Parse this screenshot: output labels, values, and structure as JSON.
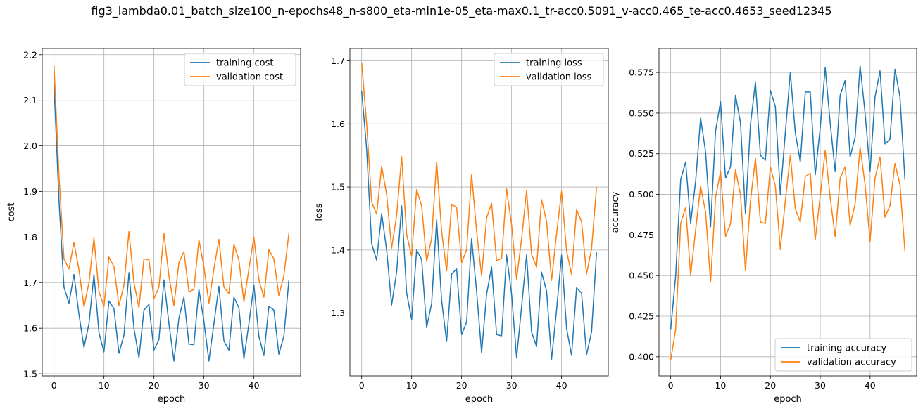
{
  "suptitle": "fig3_lambda0.01_batch_size100_n-epochs48_n-s800_eta-min1e-05_eta-max0.1_tr-acc0.5091_v-acc0.465_te-acc0.4653_seed12345",
  "colors": {
    "series1": "#1f77b4",
    "series2": "#ff7f0e",
    "grid": "#b0b0b0"
  },
  "chart_data": [
    {
      "type": "line",
      "title": "",
      "xlabel": "epoch",
      "ylabel": "cost",
      "xlim": [
        -2.35,
        49.35
      ],
      "ylim": [
        1.4955,
        2.2135
      ],
      "xticks": [
        0,
        10,
        20,
        30,
        40
      ],
      "yticks": [
        1.5,
        1.6,
        1.7,
        1.8,
        1.9,
        2.0,
        2.1,
        2.2
      ],
      "ytick_decimals": 1,
      "grid": true,
      "legend_position": "top-right",
      "x": [
        0,
        1,
        2,
        3,
        4,
        5,
        6,
        7,
        8,
        9,
        10,
        11,
        12,
        13,
        14,
        15,
        16,
        17,
        18,
        19,
        20,
        21,
        22,
        23,
        24,
        25,
        26,
        27,
        28,
        29,
        30,
        31,
        32,
        33,
        34,
        35,
        36,
        37,
        38,
        39,
        40,
        41,
        42,
        43,
        44,
        45,
        46,
        47
      ],
      "series": [
        {
          "name": "training cost",
          "values": [
            2.135,
            1.88,
            1.69,
            1.655,
            1.718,
            1.63,
            1.558,
            1.61,
            1.718,
            1.59,
            1.548,
            1.66,
            1.643,
            1.545,
            1.585,
            1.722,
            1.6,
            1.535,
            1.64,
            1.652,
            1.552,
            1.575,
            1.706,
            1.61,
            1.528,
            1.622,
            1.668,
            1.565,
            1.564,
            1.685,
            1.615,
            1.528,
            1.61,
            1.692,
            1.572,
            1.552,
            1.668,
            1.645,
            1.533,
            1.61,
            1.695,
            1.582,
            1.54,
            1.648,
            1.64,
            1.543,
            1.583,
            1.705
          ]
        },
        {
          "name": "validation cost",
          "values": [
            2.178,
            1.935,
            1.752,
            1.73,
            1.788,
            1.728,
            1.647,
            1.7,
            1.798,
            1.68,
            1.648,
            1.756,
            1.735,
            1.65,
            1.694,
            1.812,
            1.7,
            1.645,
            1.752,
            1.75,
            1.665,
            1.69,
            1.808,
            1.715,
            1.65,
            1.744,
            1.768,
            1.68,
            1.685,
            1.794,
            1.735,
            1.655,
            1.73,
            1.795,
            1.69,
            1.676,
            1.784,
            1.75,
            1.658,
            1.73,
            1.8,
            1.706,
            1.668,
            1.772,
            1.752,
            1.672,
            1.715,
            1.808
          ]
        }
      ]
    },
    {
      "type": "line",
      "title": "",
      "xlabel": "epoch",
      "ylabel": "loss",
      "xlim": [
        -2.35,
        49.35
      ],
      "ylim": [
        1.2005,
        1.7195
      ],
      "xticks": [
        0,
        10,
        20,
        30,
        40
      ],
      "yticks": [
        1.3,
        1.4,
        1.5,
        1.6,
        1.7
      ],
      "ytick_decimals": 1,
      "grid": true,
      "legend_position": "top-right",
      "x": [
        0,
        1,
        2,
        3,
        4,
        5,
        6,
        7,
        8,
        9,
        10,
        11,
        12,
        13,
        14,
        15,
        16,
        17,
        18,
        19,
        20,
        21,
        22,
        23,
        24,
        25,
        26,
        27,
        28,
        29,
        30,
        31,
        32,
        33,
        34,
        35,
        36,
        37,
        38,
        39,
        40,
        41,
        42,
        43,
        44,
        45,
        46,
        47
      ],
      "series": [
        {
          "name": "training loss",
          "values": [
            1.652,
            1.56,
            1.41,
            1.384,
            1.458,
            1.4,
            1.313,
            1.365,
            1.47,
            1.332,
            1.29,
            1.4,
            1.385,
            1.277,
            1.315,
            1.448,
            1.32,
            1.255,
            1.362,
            1.37,
            1.266,
            1.286,
            1.418,
            1.335,
            1.237,
            1.33,
            1.373,
            1.266,
            1.264,
            1.392,
            1.33,
            1.229,
            1.31,
            1.392,
            1.27,
            1.247,
            1.365,
            1.335,
            1.227,
            1.305,
            1.392,
            1.276,
            1.233,
            1.34,
            1.332,
            1.234,
            1.27,
            1.396
          ]
        },
        {
          "name": "validation loss",
          "values": [
            1.697,
            1.6,
            1.476,
            1.457,
            1.533,
            1.488,
            1.403,
            1.455,
            1.548,
            1.425,
            1.39,
            1.496,
            1.47,
            1.382,
            1.418,
            1.54,
            1.43,
            1.367,
            1.472,
            1.468,
            1.38,
            1.4,
            1.52,
            1.43,
            1.359,
            1.451,
            1.474,
            1.383,
            1.387,
            1.497,
            1.44,
            1.354,
            1.418,
            1.494,
            1.393,
            1.373,
            1.48,
            1.445,
            1.352,
            1.426,
            1.493,
            1.399,
            1.361,
            1.464,
            1.445,
            1.362,
            1.402,
            1.5
          ]
        }
      ]
    },
    {
      "type": "line",
      "title": "",
      "xlabel": "epoch",
      "ylabel": "accuracy",
      "xlim": [
        -2.35,
        49.35
      ],
      "ylim": [
        0.38825,
        0.58975
      ],
      "xticks": [
        0,
        10,
        20,
        30,
        40
      ],
      "yticks": [
        0.4,
        0.425,
        0.45,
        0.475,
        0.5,
        0.525,
        0.55,
        0.575
      ],
      "ytick_decimals": 3,
      "grid": true,
      "legend_position": "bottom-right",
      "x": [
        0,
        1,
        2,
        3,
        4,
        5,
        6,
        7,
        8,
        9,
        10,
        11,
        12,
        13,
        14,
        15,
        16,
        17,
        18,
        19,
        20,
        21,
        22,
        23,
        24,
        25,
        26,
        27,
        28,
        29,
        30,
        31,
        32,
        33,
        34,
        35,
        36,
        37,
        38,
        39,
        40,
        41,
        42,
        43,
        44,
        45,
        46,
        47
      ],
      "series": [
        {
          "name": "training accuracy",
          "values": [
            0.417,
            0.45,
            0.509,
            0.52,
            0.482,
            0.508,
            0.547,
            0.526,
            0.48,
            0.539,
            0.557,
            0.51,
            0.517,
            0.561,
            0.544,
            0.488,
            0.543,
            0.569,
            0.524,
            0.521,
            0.564,
            0.554,
            0.5,
            0.538,
            0.575,
            0.538,
            0.52,
            0.563,
            0.563,
            0.512,
            0.541,
            0.578,
            0.544,
            0.514,
            0.561,
            0.57,
            0.523,
            0.535,
            0.579,
            0.55,
            0.514,
            0.56,
            0.576,
            0.531,
            0.534,
            0.577,
            0.56,
            0.509
          ]
        },
        {
          "name": "validation accuracy",
          "values": [
            0.398,
            0.417,
            0.482,
            0.492,
            0.45,
            0.478,
            0.505,
            0.489,
            0.446,
            0.498,
            0.514,
            0.474,
            0.482,
            0.515,
            0.5,
            0.453,
            0.496,
            0.522,
            0.483,
            0.482,
            0.517,
            0.505,
            0.466,
            0.496,
            0.524,
            0.491,
            0.483,
            0.511,
            0.513,
            0.472,
            0.499,
            0.527,
            0.498,
            0.474,
            0.51,
            0.517,
            0.481,
            0.494,
            0.529,
            0.506,
            0.471,
            0.51,
            0.523,
            0.486,
            0.493,
            0.519,
            0.506,
            0.465
          ]
        }
      ]
    }
  ]
}
